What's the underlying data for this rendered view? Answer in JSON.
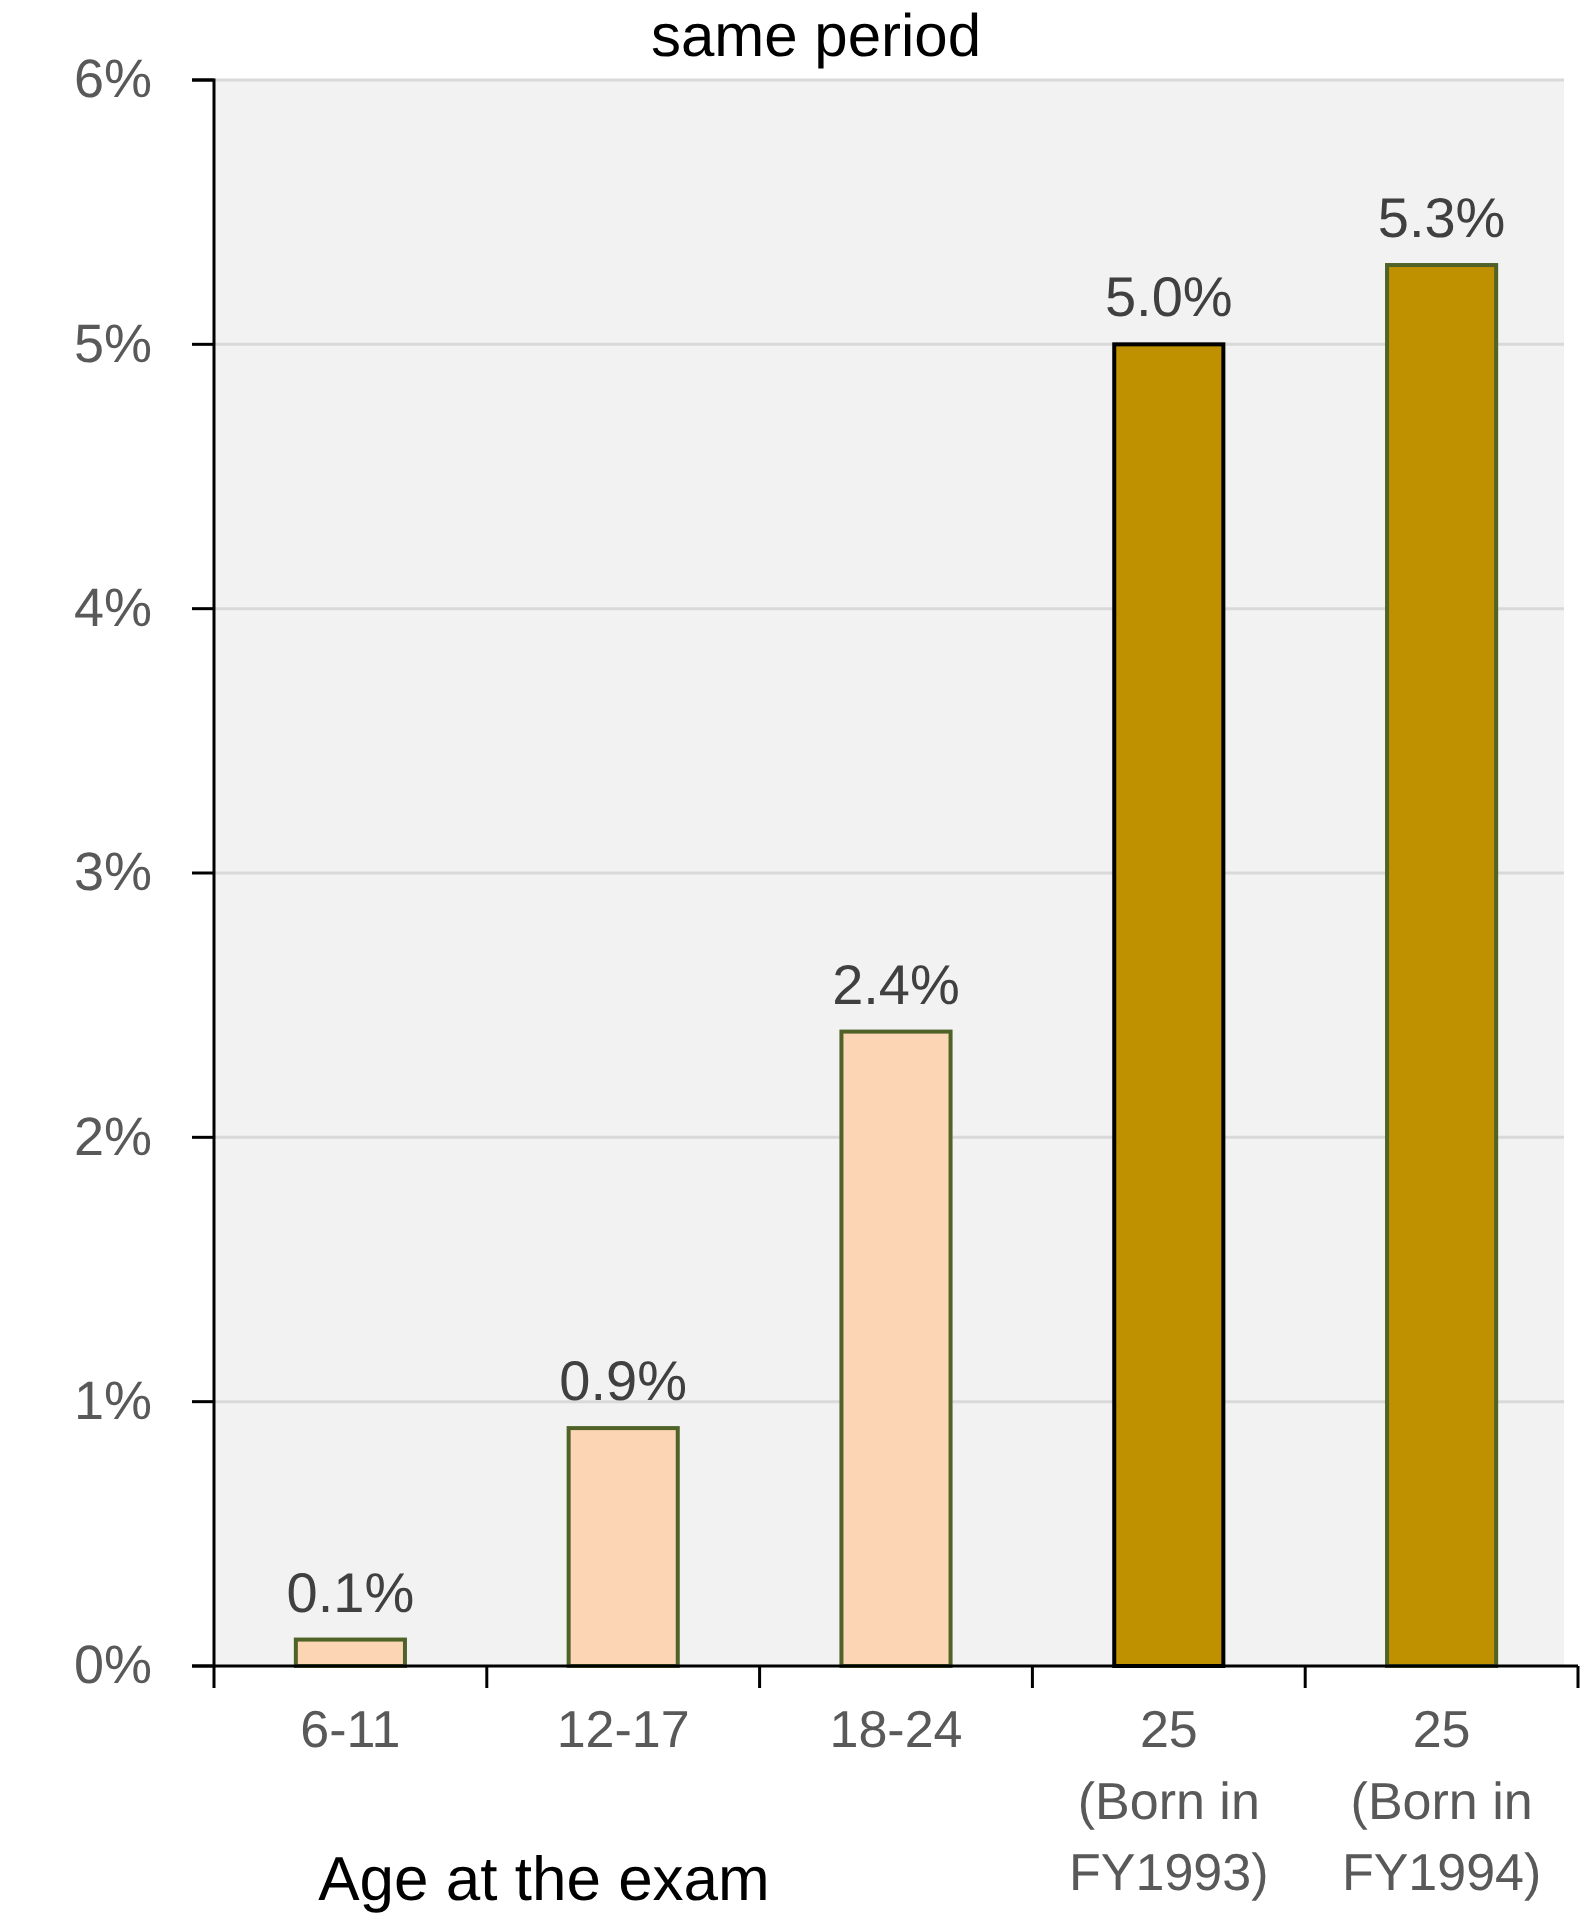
{
  "chart_data": {
    "type": "bar",
    "title": "same period",
    "xlabel": "Age at the exam",
    "categories": [
      "6-11",
      "12-17",
      "18-24",
      "25\n(Born in\nFY1993)",
      "25\n(Born in\nFY1994)"
    ],
    "values": [
      0.1,
      0.9,
      2.4,
      5.0,
      5.3
    ],
    "colors": [
      "#fcd5b4",
      "#fcd5b4",
      "#fcd5b4",
      "#bf9000",
      "#bf9000"
    ],
    "value_labels": [
      "0.1%",
      "0.9%",
      "2.4%",
      "5.0%",
      "5.3%"
    ],
    "ylim": [
      0,
      6
    ],
    "yticks": [
      {
        "value": 0,
        "label": "0%"
      },
      {
        "value": 1,
        "label": "1%"
      },
      {
        "value": 2,
        "label": "2%"
      },
      {
        "value": 3,
        "label": "3%"
      },
      {
        "value": 4,
        "label": "4%"
      },
      {
        "value": 5,
        "label": "5%"
      },
      {
        "value": 6,
        "label": "6%"
      }
    ],
    "grid": "y"
  }
}
